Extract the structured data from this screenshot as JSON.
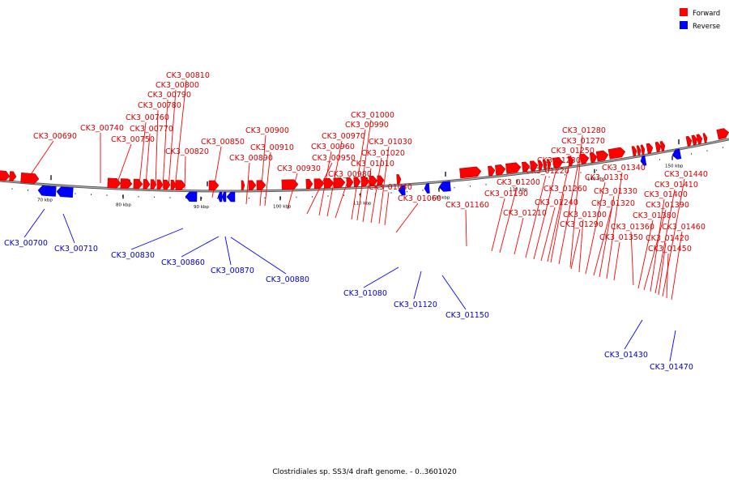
{
  "caption": "Clostridiales sp. SS3/4 draft genome. - 0..3601020",
  "legend": [
    {
      "label": "Forward",
      "color": "#ff0000"
    },
    {
      "label": "Reverse",
      "color": "#0000ff"
    }
  ],
  "colors": {
    "forward": "#ff0000",
    "reverse": "#0000ff",
    "label_forward": "#d40000",
    "label_reverse": "#0000c0",
    "backbone": "#888888"
  },
  "tick_labels": [
    "70 kbp",
    "80 kbp",
    "90 kbp",
    "100 kbp",
    "110 kbp",
    "120 kbp",
    "130 kbp",
    "140 kbp",
    "150 kbp"
  ],
  "forward_labels": [
    "CK3_00690",
    "CK3_00740",
    "CK3_00750",
    "CK3_00760",
    "CK3_00770",
    "CK3_00780",
    "CK3_00790",
    "CK3_00800",
    "CK3_00810",
    "CK3_00820",
    "CK3_00850",
    "CK3_00890",
    "CK3_00900",
    "CK3_00910",
    "CK3_00930",
    "CK3_00950",
    "CK3_00960",
    "CK3_00970",
    "CK3_00980",
    "CK3_00990",
    "CK3_01000",
    "CK3_01010",
    "CK3_01020",
    "CK3_01030",
    "CK3_01040",
    "CK3_01060",
    "CK3_01160",
    "CK3_01190",
    "CK3_01200",
    "CK3_01210",
    "CK3_01220",
    "CK3_01230",
    "CK3_01240",
    "CK3_01250",
    "CK3_01260",
    "CK3_01270",
    "CK3_01280",
    "CK3_01290",
    "CK3_01300",
    "CK3_01310",
    "CK3_01320",
    "CK3_01330",
    "CK3_01340",
    "CK3_01350",
    "CK3_01360",
    "CK3_01380",
    "CK3_01390",
    "CK3_01400",
    "CK3_01410",
    "CK3_01420",
    "CK3_01440",
    "CK3_01450",
    "CK3_01460"
  ],
  "reverse_labels": [
    "CK3_00700",
    "CK3_00710",
    "CK3_00830",
    "CK3_00860",
    "CK3_00870",
    "CK3_00880",
    "CK3_01080",
    "CK3_01120",
    "CK3_01150",
    "CK3_01430",
    "CK3_01470"
  ]
}
